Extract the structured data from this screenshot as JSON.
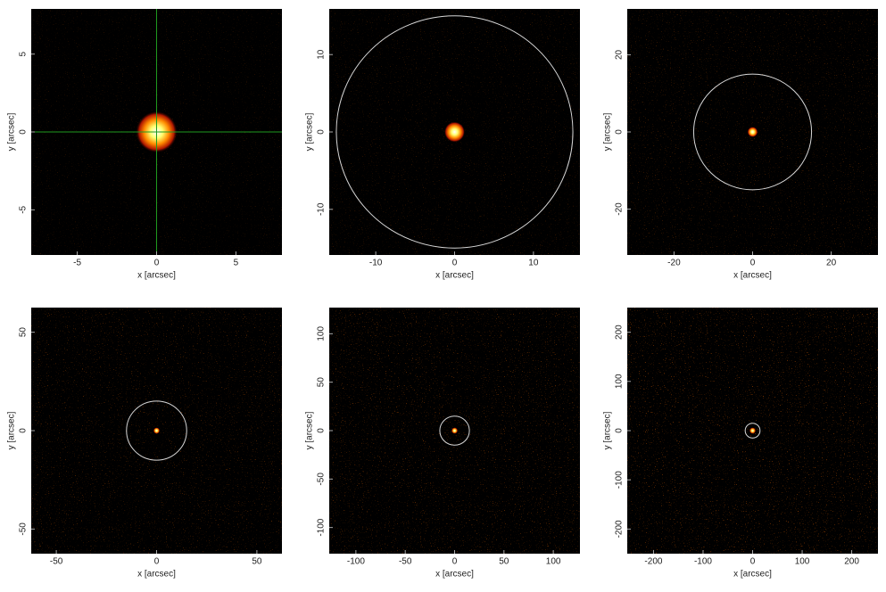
{
  "chart_data": [
    {
      "type": "image",
      "x_label": "x [arcsec]",
      "y_label": "y [arcsec]",
      "xlim": [
        -7.9,
        7.9
      ],
      "ylim": [
        -7.9,
        7.9
      ],
      "xticks": [
        -5,
        0,
        5
      ],
      "yticks": [
        -5,
        0,
        5
      ],
      "crosshair": true,
      "crosshair_color": "#1f9a1f"
    },
    {
      "type": "image",
      "x_label": "x [arcsec]",
      "y_label": "y [arcsec]",
      "xlim": [
        -15.9,
        15.9
      ],
      "ylim": [
        -15.9,
        15.9
      ],
      "xticks": [
        -10,
        0,
        10
      ],
      "yticks": [
        -10,
        0,
        10
      ],
      "aperture_radius": 15,
      "aperture_color": "#d8d8d8"
    },
    {
      "type": "image",
      "x_label": "x [arcsec]",
      "y_label": "y [arcsec]",
      "xlim": [
        -31.9,
        31.9
      ],
      "ylim": [
        -31.9,
        31.9
      ],
      "xticks": [
        -20,
        0,
        20
      ],
      "yticks": [
        -20,
        0,
        20
      ],
      "aperture_radius": 15,
      "aperture_color": "#d8d8d8"
    },
    {
      "type": "image",
      "x_label": "x [arcsec]",
      "y_label": "y [arcsec]",
      "xlim": [
        -62.5,
        62.5
      ],
      "ylim": [
        -62.5,
        62.5
      ],
      "xticks": [
        -50,
        0,
        50
      ],
      "yticks": [
        -50,
        0,
        50
      ],
      "aperture_radius": 15,
      "aperture_color": "#d8d8d8"
    },
    {
      "type": "image",
      "x_label": "x [arcsec]",
      "y_label": "y [arcsec]",
      "xlim": [
        -127,
        127
      ],
      "ylim": [
        -127,
        127
      ],
      "xticks": [
        -100,
        -50,
        0,
        50,
        100
      ],
      "yticks": [
        -100,
        -50,
        0,
        50,
        100
      ],
      "aperture_radius": 15,
      "aperture_color": "#d8d8d8"
    },
    {
      "type": "image",
      "x_label": "x [arcsec]",
      "y_label": "y [arcsec]",
      "xlim": [
        -253,
        253
      ],
      "ylim": [
        -250,
        250
      ],
      "xticks": [
        -200,
        -100,
        0,
        100,
        200
      ],
      "yticks": [
        -200,
        -100,
        0,
        100,
        200
      ],
      "aperture_radius": 15,
      "aperture_color": "#d8d8d8"
    }
  ]
}
